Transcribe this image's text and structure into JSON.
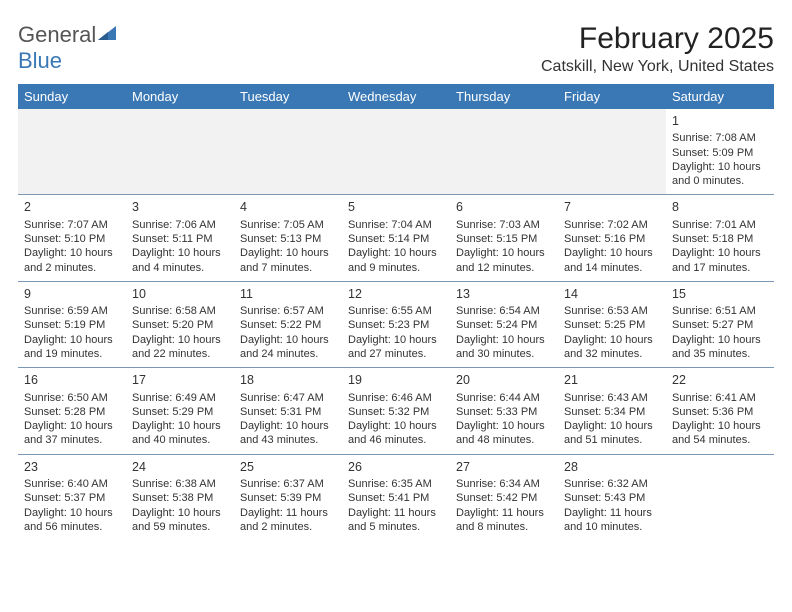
{
  "logo": {
    "text_general": "General",
    "text_blue": "Blue",
    "mark_color": "#3a78b5"
  },
  "header": {
    "month_year": "February 2025",
    "location": "Catskill, New York, United States"
  },
  "colors": {
    "header_bg": "#3a78b5",
    "header_text": "#ffffff",
    "row_divider": "#7a97b5",
    "empty_bg": "#f2f2f2",
    "body_text": "#333333",
    "page_bg": "#ffffff"
  },
  "weekdays": [
    "Sunday",
    "Monday",
    "Tuesday",
    "Wednesday",
    "Thursday",
    "Friday",
    "Saturday"
  ],
  "weeks": [
    [
      null,
      null,
      null,
      null,
      null,
      null,
      {
        "day": "1",
        "sunrise": "Sunrise: 7:08 AM",
        "sunset": "Sunset: 5:09 PM",
        "daylight1": "Daylight: 10 hours",
        "daylight2": "and 0 minutes."
      }
    ],
    [
      {
        "day": "2",
        "sunrise": "Sunrise: 7:07 AM",
        "sunset": "Sunset: 5:10 PM",
        "daylight1": "Daylight: 10 hours",
        "daylight2": "and 2 minutes."
      },
      {
        "day": "3",
        "sunrise": "Sunrise: 7:06 AM",
        "sunset": "Sunset: 5:11 PM",
        "daylight1": "Daylight: 10 hours",
        "daylight2": "and 4 minutes."
      },
      {
        "day": "4",
        "sunrise": "Sunrise: 7:05 AM",
        "sunset": "Sunset: 5:13 PM",
        "daylight1": "Daylight: 10 hours",
        "daylight2": "and 7 minutes."
      },
      {
        "day": "5",
        "sunrise": "Sunrise: 7:04 AM",
        "sunset": "Sunset: 5:14 PM",
        "daylight1": "Daylight: 10 hours",
        "daylight2": "and 9 minutes."
      },
      {
        "day": "6",
        "sunrise": "Sunrise: 7:03 AM",
        "sunset": "Sunset: 5:15 PM",
        "daylight1": "Daylight: 10 hours",
        "daylight2": "and 12 minutes."
      },
      {
        "day": "7",
        "sunrise": "Sunrise: 7:02 AM",
        "sunset": "Sunset: 5:16 PM",
        "daylight1": "Daylight: 10 hours",
        "daylight2": "and 14 minutes."
      },
      {
        "day": "8",
        "sunrise": "Sunrise: 7:01 AM",
        "sunset": "Sunset: 5:18 PM",
        "daylight1": "Daylight: 10 hours",
        "daylight2": "and 17 minutes."
      }
    ],
    [
      {
        "day": "9",
        "sunrise": "Sunrise: 6:59 AM",
        "sunset": "Sunset: 5:19 PM",
        "daylight1": "Daylight: 10 hours",
        "daylight2": "and 19 minutes."
      },
      {
        "day": "10",
        "sunrise": "Sunrise: 6:58 AM",
        "sunset": "Sunset: 5:20 PM",
        "daylight1": "Daylight: 10 hours",
        "daylight2": "and 22 minutes."
      },
      {
        "day": "11",
        "sunrise": "Sunrise: 6:57 AM",
        "sunset": "Sunset: 5:22 PM",
        "daylight1": "Daylight: 10 hours",
        "daylight2": "and 24 minutes."
      },
      {
        "day": "12",
        "sunrise": "Sunrise: 6:55 AM",
        "sunset": "Sunset: 5:23 PM",
        "daylight1": "Daylight: 10 hours",
        "daylight2": "and 27 minutes."
      },
      {
        "day": "13",
        "sunrise": "Sunrise: 6:54 AM",
        "sunset": "Sunset: 5:24 PM",
        "daylight1": "Daylight: 10 hours",
        "daylight2": "and 30 minutes."
      },
      {
        "day": "14",
        "sunrise": "Sunrise: 6:53 AM",
        "sunset": "Sunset: 5:25 PM",
        "daylight1": "Daylight: 10 hours",
        "daylight2": "and 32 minutes."
      },
      {
        "day": "15",
        "sunrise": "Sunrise: 6:51 AM",
        "sunset": "Sunset: 5:27 PM",
        "daylight1": "Daylight: 10 hours",
        "daylight2": "and 35 minutes."
      }
    ],
    [
      {
        "day": "16",
        "sunrise": "Sunrise: 6:50 AM",
        "sunset": "Sunset: 5:28 PM",
        "daylight1": "Daylight: 10 hours",
        "daylight2": "and 37 minutes."
      },
      {
        "day": "17",
        "sunrise": "Sunrise: 6:49 AM",
        "sunset": "Sunset: 5:29 PM",
        "daylight1": "Daylight: 10 hours",
        "daylight2": "and 40 minutes."
      },
      {
        "day": "18",
        "sunrise": "Sunrise: 6:47 AM",
        "sunset": "Sunset: 5:31 PM",
        "daylight1": "Daylight: 10 hours",
        "daylight2": "and 43 minutes."
      },
      {
        "day": "19",
        "sunrise": "Sunrise: 6:46 AM",
        "sunset": "Sunset: 5:32 PM",
        "daylight1": "Daylight: 10 hours",
        "daylight2": "and 46 minutes."
      },
      {
        "day": "20",
        "sunrise": "Sunrise: 6:44 AM",
        "sunset": "Sunset: 5:33 PM",
        "daylight1": "Daylight: 10 hours",
        "daylight2": "and 48 minutes."
      },
      {
        "day": "21",
        "sunrise": "Sunrise: 6:43 AM",
        "sunset": "Sunset: 5:34 PM",
        "daylight1": "Daylight: 10 hours",
        "daylight2": "and 51 minutes."
      },
      {
        "day": "22",
        "sunrise": "Sunrise: 6:41 AM",
        "sunset": "Sunset: 5:36 PM",
        "daylight1": "Daylight: 10 hours",
        "daylight2": "and 54 minutes."
      }
    ],
    [
      {
        "day": "23",
        "sunrise": "Sunrise: 6:40 AM",
        "sunset": "Sunset: 5:37 PM",
        "daylight1": "Daylight: 10 hours",
        "daylight2": "and 56 minutes."
      },
      {
        "day": "24",
        "sunrise": "Sunrise: 6:38 AM",
        "sunset": "Sunset: 5:38 PM",
        "daylight1": "Daylight: 10 hours",
        "daylight2": "and 59 minutes."
      },
      {
        "day": "25",
        "sunrise": "Sunrise: 6:37 AM",
        "sunset": "Sunset: 5:39 PM",
        "daylight1": "Daylight: 11 hours",
        "daylight2": "and 2 minutes."
      },
      {
        "day": "26",
        "sunrise": "Sunrise: 6:35 AM",
        "sunset": "Sunset: 5:41 PM",
        "daylight1": "Daylight: 11 hours",
        "daylight2": "and 5 minutes."
      },
      {
        "day": "27",
        "sunrise": "Sunrise: 6:34 AM",
        "sunset": "Sunset: 5:42 PM",
        "daylight1": "Daylight: 11 hours",
        "daylight2": "and 8 minutes."
      },
      {
        "day": "28",
        "sunrise": "Sunrise: 6:32 AM",
        "sunset": "Sunset: 5:43 PM",
        "daylight1": "Daylight: 11 hours",
        "daylight2": "and 10 minutes."
      },
      null
    ]
  ]
}
